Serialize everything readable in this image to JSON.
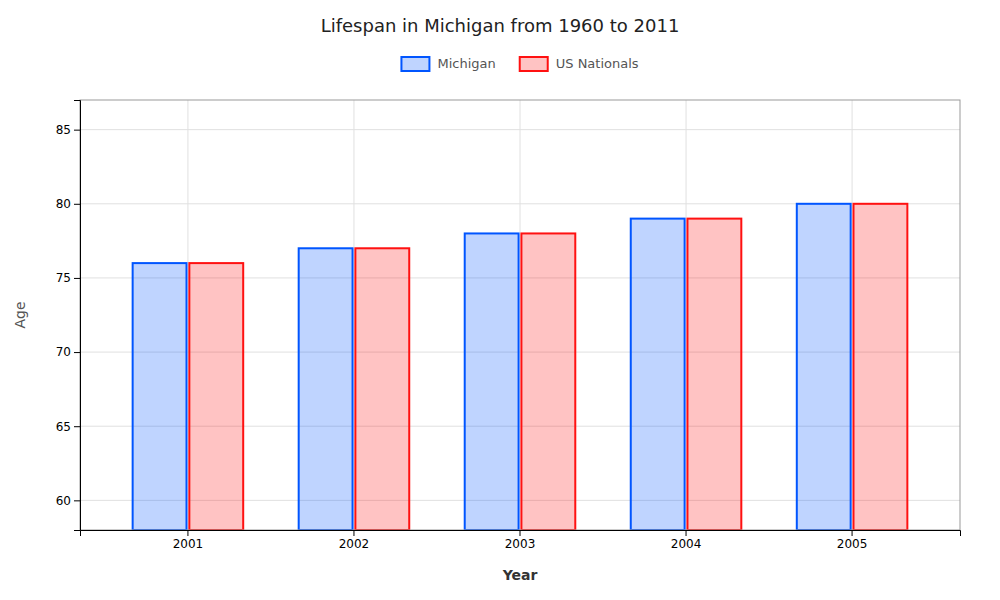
{
  "chart_data": {
    "type": "bar",
    "title": "Lifespan in Michigan from 1960 to 2011",
    "x_label": "Year",
    "y_label": "Age",
    "categories": [
      "2001",
      "2002",
      "2003",
      "2004",
      "2005"
    ],
    "series": [
      {
        "name": "Michigan",
        "color": "#0055ff",
        "values": [
          76.0,
          77.0,
          78.0,
          79.0,
          80.0
        ]
      },
      {
        "name": "US Nationals",
        "color": "#ff1111",
        "values": [
          76.0,
          77.0,
          78.0,
          79.0,
          80.0
        ]
      }
    ],
    "ylim": [
      58,
      87
    ],
    "yticks": [
      60,
      65,
      70,
      75,
      80,
      85
    ],
    "grid": true,
    "legend": "top"
  }
}
